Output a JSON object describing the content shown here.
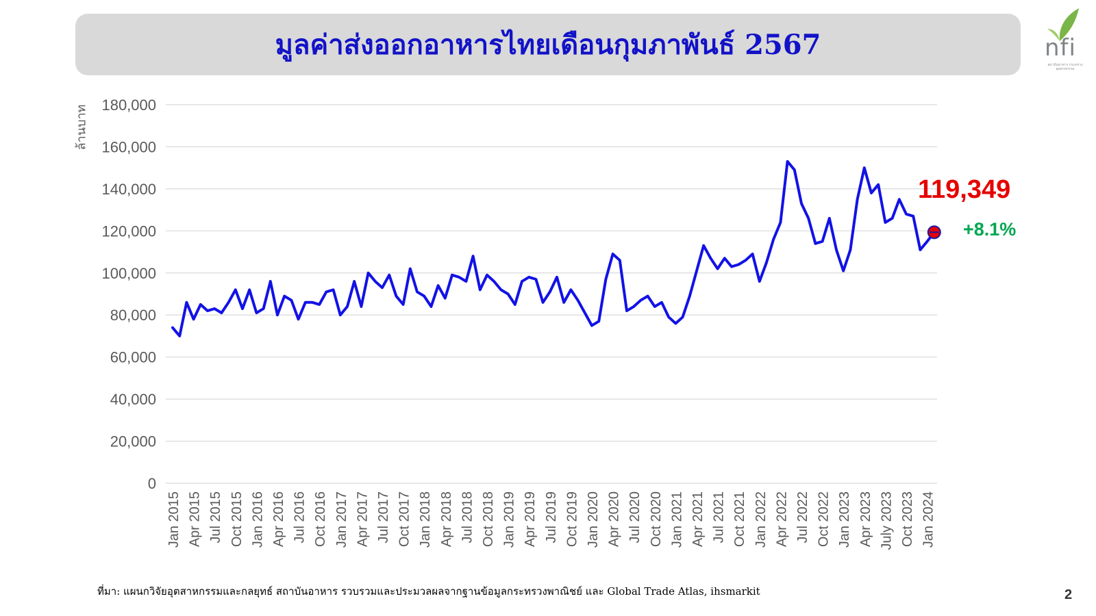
{
  "title": "มูลค่าส่งออกอาหารไทยเดือนกุมภาพันธ์ 2567",
  "logo": {
    "text": "nfi",
    "subtext": "สถาบันอาหาร กระทรวงอุตสาหกรรม"
  },
  "source_note": "ที่มา: แผนกวิจัยอุตสาหกรรมและกลยุทธ์  สถาบันอาหาร รวบรวมและประมวลผลจากฐานข้อมูลกระทรวงพาณิชย์ และ Global Trade Atlas, ihsmarkit",
  "page_number": "2",
  "colors": {
    "title": "#1212c8",
    "line": "#1212e6",
    "highlight": "#e60000",
    "change": "#00a651",
    "grid": "#d9d9d9",
    "axis_text": "#595959"
  },
  "chart_data": {
    "type": "line",
    "ylabel": "ล้านบาท",
    "ylim": [
      0,
      180000
    ],
    "yticks": [
      0,
      20000,
      40000,
      60000,
      80000,
      100000,
      120000,
      140000,
      160000,
      180000
    ],
    "ytick_labels": [
      "0",
      "20,000",
      "40,000",
      "60,000",
      "80,000",
      "100,000",
      "120,000",
      "140,000",
      "160,000",
      "180,000"
    ],
    "xtick_labels": [
      "Jan 2015",
      "Apr 2015",
      "Jul 2015",
      "Oct 2015",
      "Jan 2016",
      "Apr 2016",
      "Jul 2016",
      "Oct 2016",
      "Jan 2017",
      "Apr 2017",
      "Jul 2017",
      "Oct 2017",
      "Jan 2018",
      "Apr 2018",
      "Jul 2018",
      "Oct 2018",
      "Jan 2019",
      "Apr 2019",
      "Jul 2019",
      "Oct 2019",
      "Jan 2020",
      "Apr 2020",
      "Jul 2020",
      "Oct 2020",
      "Jan 2021",
      "Apr 2021",
      "Jul 2021",
      "Oct 2021",
      "Jan 2022",
      "Apr 2022",
      "Jul 2022",
      "Oct 2022",
      "Jan 2023",
      "Apr 2023",
      "July 2023",
      "Oct 2023",
      "Jan 2024"
    ],
    "grid": true,
    "series": [
      {
        "values": [
          74000,
          70000,
          86000,
          78000,
          85000,
          82000,
          83000,
          81000,
          86000,
          92000,
          83000,
          92000,
          81000,
          83000,
          96000,
          80000,
          89000,
          87000,
          78000,
          86000,
          86000,
          85000,
          91000,
          92000,
          80000,
          84000,
          96000,
          84000,
          100000,
          96000,
          93000,
          99000,
          89000,
          85000,
          102000,
          91000,
          89000,
          84000,
          94000,
          88000,
          99000,
          98000,
          96000,
          108000,
          92000,
          99000,
          96000,
          92000,
          90000,
          85000,
          96000,
          98000,
          97000,
          86000,
          91000,
          98000,
          86000,
          92000,
          87000,
          81000,
          75000,
          77000,
          97000,
          109000,
          106000,
          82000,
          84000,
          87000,
          89000,
          84000,
          86000,
          79000,
          76000,
          79000,
          89000,
          101000,
          113000,
          107000,
          102000,
          107000,
          103000,
          104000,
          106000,
          109000,
          96000,
          105000,
          116000,
          124000,
          153000,
          149000,
          133000,
          126000,
          114000,
          115000,
          126000,
          111000,
          101000,
          111000,
          135000,
          150000,
          138000,
          142000,
          124000,
          126000,
          135000,
          128000,
          127000,
          111000,
          115000,
          119349
        ]
      }
    ],
    "highlight": {
      "value_label": "119,349",
      "change_label": "+8.1%"
    }
  }
}
